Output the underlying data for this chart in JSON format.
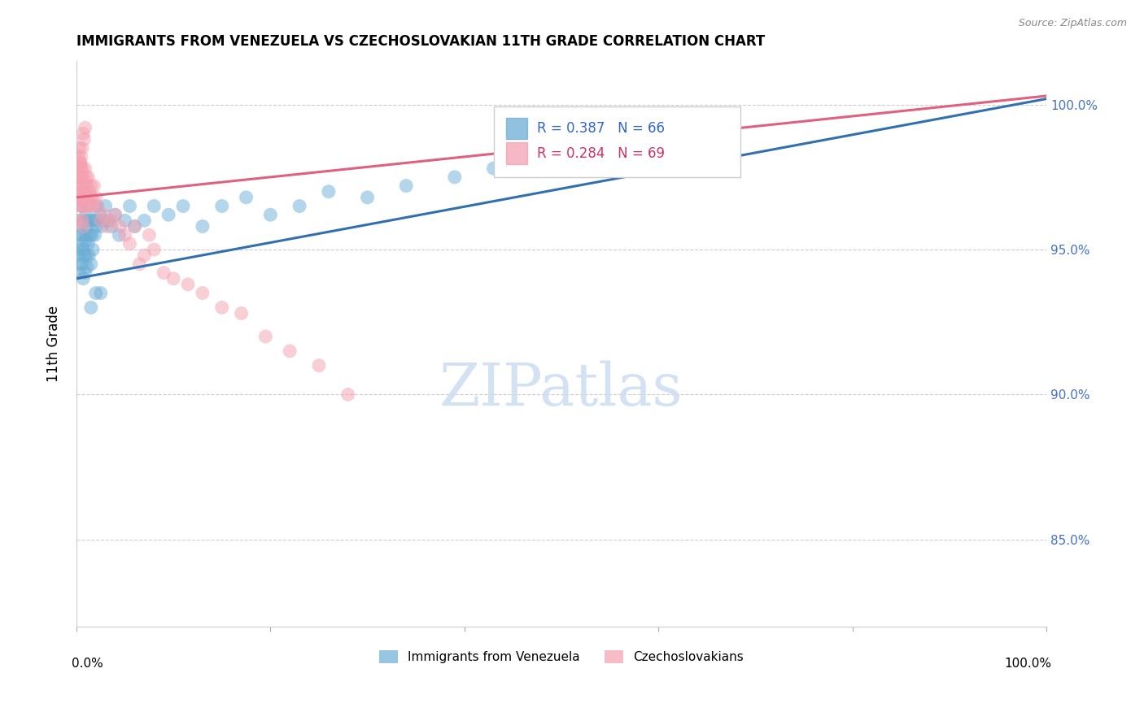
{
  "title": "IMMIGRANTS FROM VENEZUELA VS CZECHOSLOVAKIAN 11TH GRADE CORRELATION CHART",
  "source": "Source: ZipAtlas.com",
  "ylabel": "11th Grade",
  "ytick_labels": [
    "100.0%",
    "95.0%",
    "90.0%",
    "85.0%"
  ],
  "ytick_values": [
    1.0,
    0.95,
    0.9,
    0.85
  ],
  "xlim": [
    0.0,
    1.0
  ],
  "ylim": [
    0.82,
    1.015
  ],
  "legend_blue_label": "Immigrants from Venezuela",
  "legend_pink_label": "Czechoslovakians",
  "blue_color": "#6baed6",
  "pink_color": "#f4a0b0",
  "blue_line_color": "#3070b0",
  "pink_line_color": "#e06080",
  "watermark_text": "ZIPatlas",
  "watermark_color": "#ccddf0",
  "blue_line_x": [
    0.0,
    1.0
  ],
  "blue_line_y": [
    0.94,
    1.002
  ],
  "pink_line_x": [
    0.0,
    1.0
  ],
  "pink_line_y": [
    0.968,
    1.003
  ],
  "blue_scatter_x": [
    0.001,
    0.002,
    0.002,
    0.003,
    0.003,
    0.004,
    0.004,
    0.005,
    0.005,
    0.006,
    0.006,
    0.007,
    0.007,
    0.008,
    0.008,
    0.009,
    0.009,
    0.01,
    0.01,
    0.01,
    0.011,
    0.011,
    0.012,
    0.012,
    0.013,
    0.014,
    0.015,
    0.015,
    0.016,
    0.017,
    0.018,
    0.019,
    0.02,
    0.021,
    0.022,
    0.024,
    0.026,
    0.028,
    0.03,
    0.033,
    0.036,
    0.04,
    0.044,
    0.05,
    0.055,
    0.06,
    0.07,
    0.08,
    0.095,
    0.11,
    0.13,
    0.15,
    0.175,
    0.2,
    0.23,
    0.26,
    0.3,
    0.34,
    0.39,
    0.43,
    0.5,
    0.58,
    0.64,
    0.02,
    0.025,
    0.015
  ],
  "blue_scatter_y": [
    0.95,
    0.96,
    0.945,
    0.955,
    0.942,
    0.948,
    0.958,
    0.952,
    0.965,
    0.945,
    0.955,
    0.94,
    0.95,
    0.96,
    0.948,
    0.953,
    0.942,
    0.955,
    0.948,
    0.962,
    0.944,
    0.958,
    0.952,
    0.96,
    0.948,
    0.955,
    0.945,
    0.96,
    0.955,
    0.95,
    0.96,
    0.955,
    0.958,
    0.965,
    0.96,
    0.962,
    0.958,
    0.96,
    0.965,
    0.96,
    0.958,
    0.962,
    0.955,
    0.96,
    0.965,
    0.958,
    0.96,
    0.965,
    0.962,
    0.965,
    0.958,
    0.965,
    0.968,
    0.962,
    0.965,
    0.97,
    0.968,
    0.972,
    0.975,
    0.978,
    0.982,
    0.985,
    0.99,
    0.935,
    0.935,
    0.93
  ],
  "pink_scatter_x": [
    0.001,
    0.001,
    0.002,
    0.002,
    0.003,
    0.003,
    0.004,
    0.004,
    0.005,
    0.005,
    0.005,
    0.006,
    0.006,
    0.007,
    0.007,
    0.008,
    0.008,
    0.009,
    0.009,
    0.01,
    0.01,
    0.011,
    0.011,
    0.012,
    0.012,
    0.013,
    0.014,
    0.015,
    0.016,
    0.017,
    0.018,
    0.02,
    0.022,
    0.025,
    0.028,
    0.032,
    0.036,
    0.04,
    0.045,
    0.05,
    0.055,
    0.06,
    0.065,
    0.07,
    0.075,
    0.08,
    0.09,
    0.1,
    0.115,
    0.13,
    0.15,
    0.17,
    0.195,
    0.22,
    0.25,
    0.28,
    0.006,
    0.007,
    0.008,
    0.009,
    0.003,
    0.004,
    0.005,
    0.002,
    0.003,
    0.004,
    0.005,
    0.006,
    0.007
  ],
  "pink_scatter_y": [
    0.975,
    0.96,
    0.97,
    0.982,
    0.968,
    0.978,
    0.972,
    0.98,
    0.975,
    0.982,
    0.965,
    0.97,
    0.978,
    0.968,
    0.975,
    0.972,
    0.965,
    0.978,
    0.97,
    0.975,
    0.968,
    0.972,
    0.965,
    0.975,
    0.968,
    0.97,
    0.965,
    0.972,
    0.968,
    0.965,
    0.972,
    0.968,
    0.965,
    0.96,
    0.962,
    0.958,
    0.96,
    0.962,
    0.958,
    0.955,
    0.952,
    0.958,
    0.945,
    0.948,
    0.955,
    0.95,
    0.942,
    0.94,
    0.938,
    0.935,
    0.93,
    0.928,
    0.92,
    0.915,
    0.91,
    0.9,
    0.985,
    0.99,
    0.988,
    0.992,
    0.985,
    0.98,
    0.978,
    0.972,
    0.975,
    0.968,
    0.965,
    0.96,
    0.958
  ]
}
